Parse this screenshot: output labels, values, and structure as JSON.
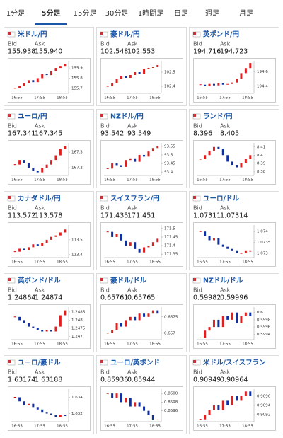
{
  "tabs": [
    "1分足",
    "5分足",
    "15分足",
    "30分足",
    "1時間足",
    "日足",
    "週足",
    "月足"
  ],
  "active_tab": 1,
  "labels": {
    "bid": "Bid",
    "ask": "Ask"
  },
  "time_labels": [
    "16:55",
    "17:55",
    "18:55"
  ],
  "cards": [
    {
      "name": "米ドル/円",
      "bid": "155.938",
      "ask": "155.940",
      "ylim": [
        155.65,
        155.97
      ],
      "yticks": [
        155.9,
        155.8,
        155.7
      ],
      "closes": [
        155.7,
        155.72,
        155.75,
        155.78,
        155.76,
        155.8,
        155.84,
        155.83,
        155.87,
        155.9,
        155.92,
        155.94
      ]
    },
    {
      "name": "豪ドル/円",
      "bid": "102.548",
      "ask": "102.553",
      "ylim": [
        102.35,
        102.58
      ],
      "yticks": [
        102.5,
        102.4
      ],
      "closes": [
        102.4,
        102.42,
        102.45,
        102.47,
        102.46,
        102.48,
        102.5,
        102.49,
        102.52,
        102.53,
        102.54,
        102.55
      ]
    },
    {
      "name": "英ポンド/円",
      "bid": "194.716",
      "ask": "194.723",
      "ylim": [
        194.3,
        194.75
      ],
      "yticks": [
        194.6,
        194.4
      ],
      "closes": [
        194.42,
        194.4,
        194.43,
        194.41,
        194.44,
        194.42,
        194.43,
        194.45,
        194.5,
        194.58,
        194.65,
        194.72
      ]
    },
    {
      "name": "ユーロ/円",
      "bid": "167.341",
      "ask": "167.345",
      "ylim": [
        167.15,
        167.36
      ],
      "yticks": [
        167.3,
        167.2
      ],
      "closes": [
        167.22,
        167.25,
        167.23,
        167.2,
        167.18,
        167.17,
        167.2,
        167.22,
        167.25,
        167.28,
        167.32,
        167.34
      ]
    },
    {
      "name": "NZドル/円",
      "bid": "93.542",
      "ask": "93.549",
      "ylim": [
        93.38,
        93.57
      ],
      "yticks": [
        93.55,
        93.5,
        93.45,
        93.4
      ],
      "closes": [
        93.42,
        93.45,
        93.44,
        93.43,
        93.47,
        93.48,
        93.46,
        93.5,
        93.49,
        93.52,
        93.54,
        93.55
      ]
    },
    {
      "name": "ランド/円",
      "bid": "8.396",
      "ask": "8.405",
      "ylim": [
        8.375,
        8.415
      ],
      "yticks": [
        8.41,
        8.4,
        8.39,
        8.38
      ],
      "closes": [
        8.395,
        8.4,
        8.405,
        8.41,
        8.408,
        8.4,
        8.392,
        8.388,
        8.385,
        8.39,
        8.395,
        8.4
      ]
    },
    {
      "name": "カナダドル/円",
      "bid": "113.572",
      "ask": "113.578",
      "ylim": [
        113.38,
        113.6
      ],
      "yticks": [
        113.5,
        113.4
      ],
      "closes": [
        113.42,
        113.44,
        113.43,
        113.45,
        113.47,
        113.46,
        113.48,
        113.5,
        113.52,
        113.53,
        113.55,
        113.57
      ]
    },
    {
      "name": "スイスフラン/円",
      "bid": "171.435",
      "ask": "171.451",
      "ylim": [
        171.33,
        171.52
      ],
      "yticks": [
        171.5,
        171.45,
        171.4,
        171.35
      ],
      "closes": [
        171.48,
        171.45,
        171.47,
        171.43,
        171.4,
        171.42,
        171.38,
        171.36,
        171.39,
        171.4,
        171.42,
        171.44
      ]
    },
    {
      "name": "ユーロ/ドル",
      "bid": "1.07311",
      "ask": "1.07314",
      "ylim": [
        1.0728,
        1.0743
      ],
      "yticks": [
        1.074,
        1.0735,
        1.073
      ],
      "closes": [
        1.074,
        1.0738,
        1.0736,
        1.0737,
        1.0734,
        1.0733,
        1.0732,
        1.0731,
        1.073,
        1.073,
        1.0731,
        1.0731
      ]
    },
    {
      "name": "英ポンド/ドル",
      "bid": "1.24864",
      "ask": "1.24874",
      "ylim": [
        1.2468,
        1.2488
      ],
      "yticks": [
        1.2485,
        1.248,
        1.2475,
        1.247
      ],
      "closes": [
        1.2482,
        1.248,
        1.2478,
        1.2476,
        1.2475,
        1.2474,
        1.2473,
        1.2474,
        1.2473,
        1.2476,
        1.2483,
        1.2486
      ]
    },
    {
      "name": "豪ドル/ドル",
      "bid": "0.65761",
      "ask": "0.65765",
      "ylim": [
        0.6568,
        0.6578
      ],
      "yticks": [
        0.6575,
        0.657
      ],
      "closes": [
        0.657,
        0.6571,
        0.6573,
        0.6572,
        0.6574,
        0.6575,
        0.6574,
        0.6576,
        0.6575,
        0.6576,
        0.6577,
        0.6576
      ]
    },
    {
      "name": "NZドル/ドル",
      "bid": "0.59982",
      "ask": "0.59996",
      "ylim": [
        0.59925,
        0.60015
      ],
      "yticks": [
        0.6,
        0.5998,
        0.5996,
        0.5994
      ],
      "closes": [
        0.5993,
        0.5995,
        0.5996,
        0.5998,
        0.5996,
        0.5999,
        0.5998,
        0.6,
        0.5997,
        0.5999,
        0.6,
        0.5999
      ]
    },
    {
      "name": "ユーロ/豪ドル",
      "bid": "1.63174",
      "ask": "1.63188",
      "ylim": [
        1.631,
        1.635
      ],
      "yticks": [
        1.634,
        1.632
      ],
      "closes": [
        1.634,
        1.6335,
        1.633,
        1.6332,
        1.6328,
        1.6325,
        1.6322,
        1.632,
        1.6318,
        1.6316,
        1.6318,
        1.6317
      ]
    },
    {
      "name": "ユーロ/英ポンド",
      "bid": "0.85936",
      "ask": "0.85944",
      "ylim": [
        0.85935,
        0.8601
      ],
      "yticks": [
        {
          "value": 0.86,
          "label": "0.8600"
        },
        0.8598,
        0.8596
      ],
      "closes": [
        0.86,
        0.8599,
        0.86,
        0.8598,
        0.8599,
        0.8597,
        0.8598,
        0.8597,
        0.8596,
        0.8595,
        0.8594,
        0.8594
      ]
    },
    {
      "name": "米ドル/スイスフラン",
      "bid": "0.90949",
      "ask": "0.90964",
      "ylim": [
        0.90905,
        0.90975
      ],
      "yticks": [
        0.9096,
        0.9094,
        0.9092
      ],
      "closes": [
        0.9091,
        0.9092,
        0.9093,
        0.9094,
        0.9093,
        0.9095,
        0.9094,
        0.9096,
        0.9095,
        0.9096,
        0.9097,
        0.9096
      ]
    }
  ]
}
